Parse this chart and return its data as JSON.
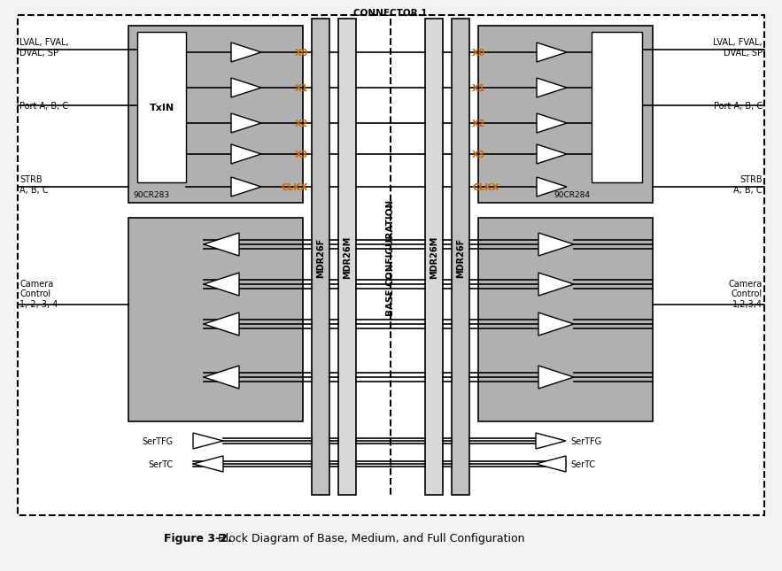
{
  "bg_color": "#f2f2f2",
  "white": "#ffffff",
  "gray": "#b0b0b0",
  "black": "#000000",
  "orange": "#cc6600",
  "label_color": "#000000",
  "title_bold": "Figure 3-2.",
  "title_rest": "  Block Diagram of Base, Medium, and Full Configuration",
  "connector_label": "CONNECTOR 1",
  "center_label": "BASE CONFIGURATION",
  "left_chip": "90CR283",
  "right_chip": "90CR284",
  "mdr26f_l": "MDR26F",
  "mdr26m_l": "MDR26M",
  "mdr26m_r": "MDR26M",
  "mdr26f_r": "MDR26F",
  "txin_label": "TxIN",
  "ll_lval": "LVAL, FVAL,\nDVAL, SP",
  "ll_portabc": "Port A, B, C",
  "ll_strb": "STRB\nA, B, C",
  "ll_camera": "Camera\nControl\n1, 2, 3, 4",
  "ll_sertfg": "SerTFG",
  "ll_sertc": "SerTC",
  "rl_lval": "LVAL, FVAL,\nDVAL, SP",
  "rl_portabc": "Port A, B, C",
  "rl_strb": "STRB\nA, B, C",
  "rl_camera": "Camera\nControl\n1,2,3,4",
  "rl_sertfg": "SerTFG",
  "rl_sertc": "SerTC"
}
